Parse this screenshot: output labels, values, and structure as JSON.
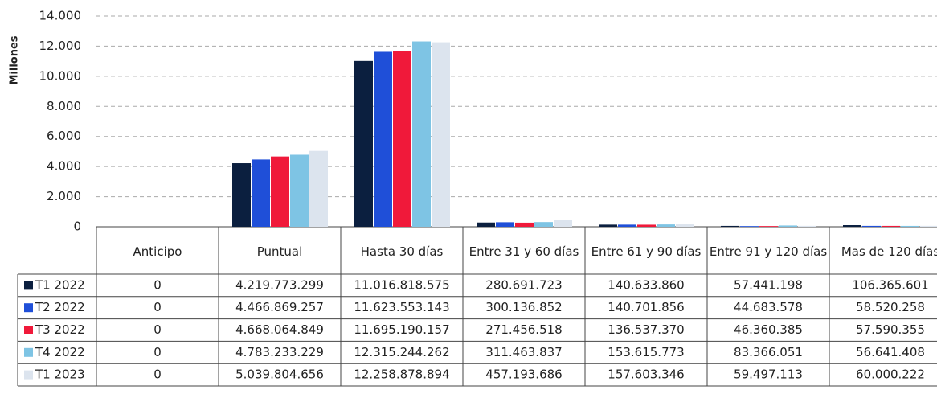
{
  "chart_data": {
    "type": "bar",
    "y_label": "Millones",
    "categories": [
      "Anticipo",
      "Puntual",
      "Hasta 30 días",
      "Entre 31 y 60 días",
      "Entre 61 y 90 días",
      "Entre 91 y 120 días",
      "Mas de 120 días"
    ],
    "series": [
      {
        "name": "T1 2022",
        "color": "#0b1f3f",
        "values": [
          0,
          4219.773299,
          11016.818575,
          280.691723,
          140.63386,
          57.441198,
          106.365601
        ],
        "value_labels": [
          "0",
          "4.219.773.299",
          "11.016.818.575",
          "280.691.723",
          "140.633.860",
          "57.441.198",
          "106.365.601"
        ]
      },
      {
        "name": "T2 2022",
        "color": "#1f4fd8",
        "values": [
          0,
          4466.869257,
          11623.553143,
          300.136852,
          140.701856,
          44.683578,
          58.520258
        ],
        "value_labels": [
          "0",
          "4.466.869.257",
          "11.623.553.143",
          "300.136.852",
          "140.701.856",
          "44.683.578",
          "58.520.258"
        ]
      },
      {
        "name": "T3 2022",
        "color": "#f0193a",
        "values": [
          0,
          4668.064849,
          11695.190157,
          271.456518,
          136.53737,
          46.360385,
          57.590355
        ],
        "value_labels": [
          "0",
          "4.668.064.849",
          "11.695.190.157",
          "271.456.518",
          "136.537.370",
          "46.360.385",
          "57.590.355"
        ]
      },
      {
        "name": "T4 2022",
        "color": "#7ec4e4",
        "values": [
          0,
          4783.233229,
          12315.244262,
          311.463837,
          153.615773,
          83.366051,
          56.641408
        ],
        "value_labels": [
          "0",
          "4.783.233.229",
          "12.315.244.262",
          "311.463.837",
          "153.615.773",
          "83.366.051",
          "56.641.408"
        ]
      },
      {
        "name": "T1 2023",
        "color": "#dce4ee",
        "values": [
          0,
          5039.804656,
          12258.878894,
          457.193686,
          157.603346,
          59.497113,
          60.000222
        ],
        "value_labels": [
          "0",
          "5.039.804.656",
          "12.258.878.894",
          "457.193.686",
          "157.603.346",
          "59.497.113",
          "60.000.222"
        ]
      }
    ],
    "ylim": [
      0,
      14000
    ],
    "yticks": [
      0,
      {
        "value": 2000,
        "label": "2.000"
      },
      {
        "value": 4000,
        "label": "4.000"
      },
      {
        "value": 6000,
        "label": "6.000"
      },
      {
        "value": 8000,
        "label": "8.000"
      },
      {
        "value": 10000,
        "label": "10.000"
      },
      {
        "value": 12000,
        "label": "12.000"
      },
      {
        "value": 14000,
        "label": "14.000"
      }
    ],
    "grid": true
  }
}
